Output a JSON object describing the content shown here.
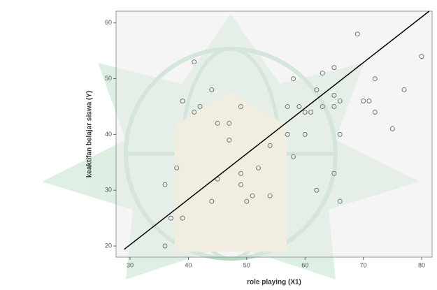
{
  "chart_data": {
    "type": "scatter",
    "x_label": "role playing (X1)",
    "y_label": "keaktifan belajar siswa (Y)",
    "xlim": [
      27.6,
      81.8
    ],
    "ylim": [
      18,
      62.1
    ],
    "xticks": [
      30,
      40,
      50,
      60,
      70,
      80
    ],
    "yticks": [
      20,
      30,
      40,
      50,
      60
    ],
    "color": "#777777",
    "series": [
      {
        "color": "#777777",
        "x": [
          69,
          80,
          41,
          65,
          63,
          58,
          72,
          44,
          62,
          77,
          65,
          39,
          66,
          70,
          71,
          42,
          41,
          49,
          57,
          59,
          63,
          65,
          60,
          61,
          72,
          45,
          47,
          47,
          57,
          60,
          66,
          75,
          54,
          58,
          38,
          52,
          49,
          65,
          36,
          49,
          45,
          51,
          54,
          62,
          44,
          50,
          66,
          37,
          39,
          36
        ],
        "values": [
          58,
          54,
          53,
          52,
          51,
          50,
          50,
          48,
          48,
          48,
          47,
          46,
          46,
          46,
          46,
          45,
          44,
          45,
          45,
          45,
          45,
          45,
          44,
          44,
          44,
          42,
          42,
          39,
          40,
          40,
          40,
          41,
          38,
          36,
          34,
          34,
          33,
          33,
          31,
          31,
          32,
          29,
          29,
          30,
          28,
          28,
          28,
          25,
          25,
          20
        ]
      }
    ],
    "fit_line": {
      "x": [
        29,
        81.3
      ],
      "y": [
        19.4,
        62.1
      ],
      "color": "#000000"
    }
  }
}
